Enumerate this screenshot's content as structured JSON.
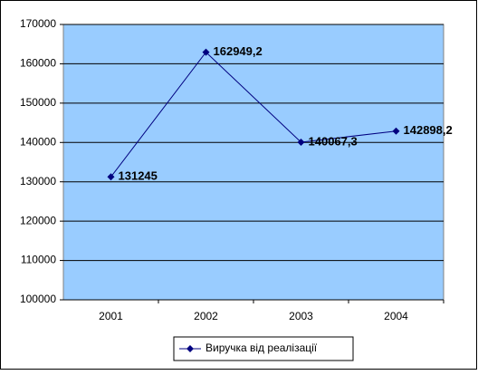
{
  "chart_data": {
    "type": "line",
    "categories": [
      "2001",
      "2002",
      "2003",
      "2004"
    ],
    "series": [
      {
        "name": "Виручка від реалізації",
        "color": "#000080",
        "values": [
          131245,
          162949.2,
          140067.3,
          142898.2
        ],
        "value_labels": [
          "131245",
          "162949,2",
          "140067,3",
          "142898,2"
        ]
      }
    ],
    "ylim": [
      100000,
      170000
    ],
    "yticks": [
      100000,
      110000,
      120000,
      130000,
      140000,
      150000,
      160000,
      170000
    ],
    "grid": true,
    "plot_background": "#99ccff",
    "legend": "bottom"
  }
}
